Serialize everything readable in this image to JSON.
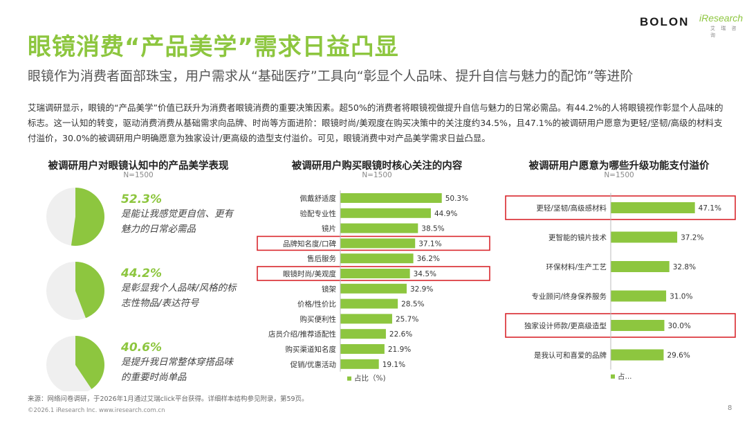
{
  "header": {
    "title": "眼镜消费“产品美学”需求日益凸显",
    "subtitle": "眼镜作为消费者面部珠宝，用户需求从“基础医疗”工具向“彰显个人品味、提升自信与魅力的配饰”等进阶",
    "logo_brand": "BOLON",
    "logo_ir": "iResearch",
    "logo_ir_sub": "艾 瑞 咨 询"
  },
  "intro": "艾瑞调研显示，眼镜的“产品美学”价值已跃升为消费者眼镜消费的重要决策因素。超50%的消费者将眼镜视做提升自信与魅力的日常必需品。有44.2%的人将眼镜视作彰显个人品味的标志。这一认知的转变，驱动消费消费从基础需求向品牌、时尚等方面进阶：眼镜时尚/美观度在购买决策中的关注度约34.5%，且47.1%的被调研用户愿意为更轻/坚韧/高级的材料支付溢价，30.0%的被调研用户明确愿意为独家设计/更高级的造型支付溢价。可见，眼镜消费中对产品美学需求日益凸显。",
  "colors": {
    "accent": "#8dc63f",
    "pie_rest": "#efefef",
    "highlight": "#d9262c"
  },
  "chart_data": [
    {
      "type": "pie",
      "title": "被调研用户对眼镜认知中的产品美学表现",
      "subtitle": "N=1500",
      "items": [
        {
          "value": 52.3,
          "label": "52.3%",
          "desc": "是能让我感觉更自信、更有魅力的日常必需品"
        },
        {
          "value": 44.2,
          "label": "44.2%",
          "desc": "是彰显我个人品味/风格的标志性物品/表达符号"
        },
        {
          "value": 40.6,
          "label": "40.6%",
          "desc": "是提升我日常整体穿搭品味的重要时尚单品"
        }
      ]
    },
    {
      "type": "bar",
      "orientation": "horizontal",
      "title": "被调研用户购买眼镜时核心关注的内容",
      "subtitle": "N=1500",
      "categories": [
        "佩戴舒适度",
        "验配专业性",
        "镜片",
        "品牌知名度/口碑",
        "售后服务",
        "眼镜时尚/美观度",
        "镜架",
        "价格/性价比",
        "购买便利性",
        "店员介绍/推荐适配性",
        "购买渠道知名度",
        "促销/优惠活动"
      ],
      "values": [
        50.3,
        44.9,
        38.5,
        37.1,
        36.2,
        34.5,
        32.9,
        28.5,
        25.7,
        22.6,
        21.9,
        19.1
      ],
      "labels": [
        "50.3%",
        "44.9%",
        "38.5%",
        "37.1%",
        "36.2%",
        "34.5%",
        "32.9%",
        "28.5%",
        "25.7%",
        "22.6%",
        "21.9%",
        "19.1%"
      ],
      "highlighted": [
        3,
        5
      ],
      "legend": "占比（%)",
      "xlim": [
        0,
        60
      ]
    },
    {
      "type": "bar",
      "orientation": "horizontal",
      "title": "被调研用户愿意为哪些升级功能支付溢价",
      "subtitle": "N=1500",
      "categories": [
        "更轻/坚韧/高级感材料",
        "更智能的镜片技术",
        "环保材料/生产工艺",
        "专业顾问/终身保养服务",
        "独家设计师款/更高级造型",
        "是我认可和喜爱的品牌"
      ],
      "values": [
        47.1,
        37.2,
        32.8,
        31.0,
        30.0,
        29.6
      ],
      "labels": [
        "47.1%",
        "37.2%",
        "32.8%",
        "31.0%",
        "30.0%",
        "29.6%"
      ],
      "highlighted": [
        0,
        4
      ],
      "legend": "占...",
      "xlim": [
        0,
        60
      ]
    }
  ],
  "footer": {
    "source": "来源：网络问卷调研，于2026年1月通过艾瑞click平台获得。详细样本结构参见附录，第59页。",
    "copyright": "©2026.1 iResearch Inc. www.iresearch.com.cn",
    "page": "8"
  }
}
